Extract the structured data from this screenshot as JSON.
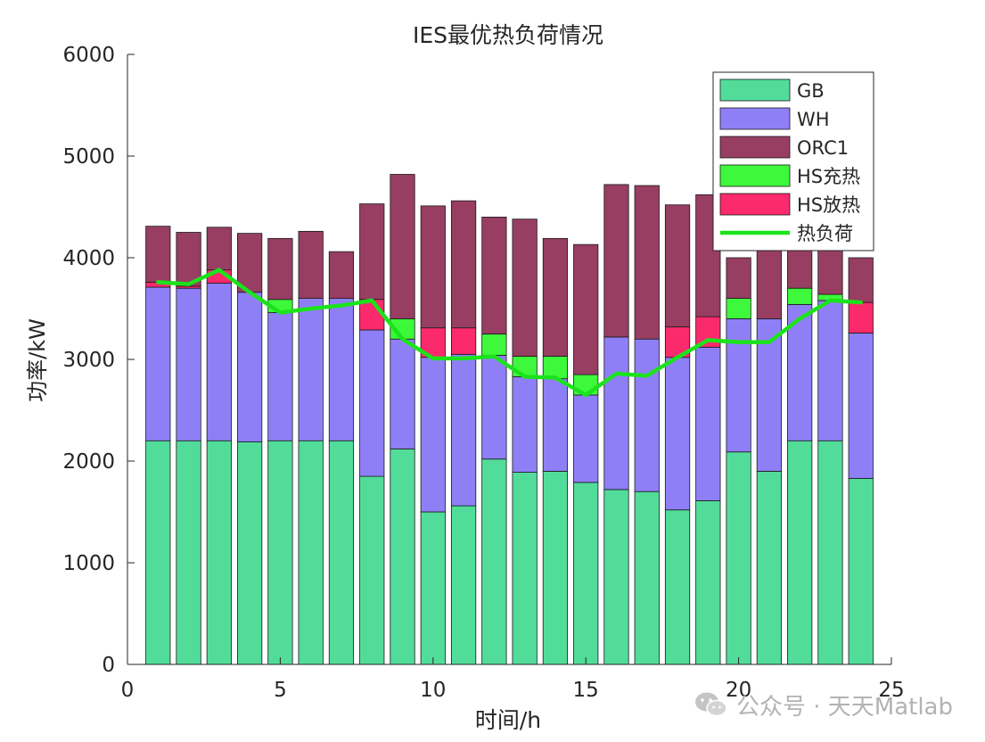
{
  "chart_data": {
    "type": "bar",
    "title": "IES最优热负荷情况",
    "xlabel": "时间/h",
    "ylabel": "功率/kW",
    "xlim": [
      0,
      25
    ],
    "ylim": [
      0,
      6000
    ],
    "xticks": [
      0,
      5,
      10,
      15,
      20,
      25
    ],
    "yticks": [
      0,
      1000,
      2000,
      3000,
      4000,
      5000,
      6000
    ],
    "grid": false,
    "legend_position": "top-right",
    "x": [
      1,
      2,
      3,
      4,
      5,
      6,
      7,
      8,
      9,
      10,
      11,
      12,
      13,
      14,
      15,
      16,
      17,
      18,
      19,
      20,
      21,
      22,
      23,
      24
    ],
    "stack_series": [
      {
        "name": "GB",
        "color": "#52DC9A",
        "values": [
          2200,
          2200,
          2200,
          2190,
          2200,
          2200,
          2200,
          1850,
          2120,
          1500,
          1560,
          2020,
          1890,
          1900,
          1790,
          1720,
          1700,
          1520,
          1610,
          2090,
          1900,
          2200,
          2200,
          1830
        ]
      },
      {
        "name": "WH",
        "color": "#8F7FF7",
        "values": [
          1510,
          1500,
          1550,
          1470,
          1260,
          1400,
          1400,
          1440,
          1080,
          1520,
          1490,
          1020,
          940,
          910,
          860,
          1500,
          1500,
          1500,
          1510,
          1310,
          1500,
          1340,
          1380,
          1430
        ]
      },
      {
        "name": "HS放热",
        "color": "#FA2A6C",
        "values": [
          50,
          20,
          130,
          0,
          0,
          0,
          0,
          300,
          0,
          290,
          260,
          0,
          0,
          0,
          0,
          0,
          0,
          300,
          300,
          0,
          0,
          0,
          0,
          300
        ]
      },
      {
        "name": "HS充热",
        "color": "#3DF83B",
        "values": [
          0,
          0,
          0,
          0,
          130,
          0,
          0,
          0,
          200,
          0,
          0,
          210,
          200,
          220,
          200,
          0,
          0,
          0,
          0,
          200,
          0,
          160,
          60,
          0
        ]
      },
      {
        "name": "ORC1",
        "color": "#973E62",
        "values": [
          550,
          530,
          420,
          580,
          600,
          660,
          460,
          940,
          1420,
          1200,
          1250,
          1150,
          1350,
          1160,
          1280,
          1500,
          1510,
          1200,
          1200,
          400,
          780,
          400,
          510,
          440
        ]
      }
    ],
    "legend_items": [
      {
        "name": "GB",
        "color": "#52DC9A",
        "kind": "patch"
      },
      {
        "name": "WH",
        "color": "#8F7FF7",
        "kind": "patch"
      },
      {
        "name": "ORC1",
        "color": "#973E62",
        "kind": "patch"
      },
      {
        "name": "HS充热",
        "color": "#3DF83B",
        "kind": "patch"
      },
      {
        "name": "HS放热",
        "color": "#FA2A6C",
        "kind": "patch"
      },
      {
        "name": "热负荷",
        "color": "#1BE31B",
        "kind": "line"
      }
    ],
    "line_series": {
      "name": "热负荷",
      "color": "#1BE31B",
      "values": [
        3760,
        3740,
        3880,
        3660,
        3460,
        3500,
        3530,
        3580,
        3200,
        3010,
        3010,
        3030,
        2830,
        2820,
        2650,
        2860,
        2840,
        3020,
        3190,
        3170,
        3170,
        3400,
        3580,
        3560
      ]
    }
  },
  "watermark": {
    "text": "公众号 · 天天Matlab",
    "icon": "wechat-icon"
  }
}
